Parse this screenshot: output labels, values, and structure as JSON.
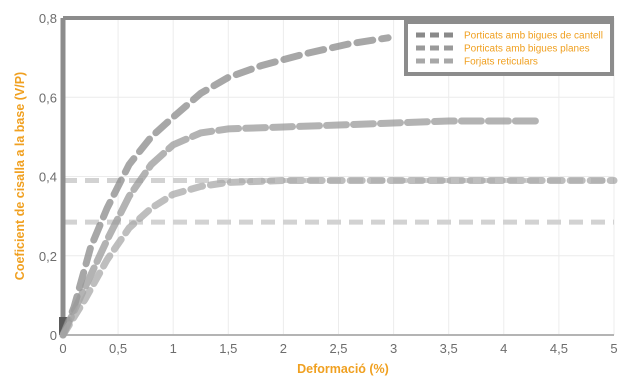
{
  "chart_data": {
    "type": "line",
    "title": "",
    "xlabel": "Deformació (%)",
    "ylabel": "Coeficient de cisalla a la base (V/P)",
    "xlim": [
      0,
      5
    ],
    "ylim": [
      0,
      0.8
    ],
    "x_ticks": [
      "0",
      "0,5",
      "1",
      "1,5",
      "2",
      "2,5",
      "3",
      "3,5",
      "4",
      "4,5",
      "5"
    ],
    "y_ticks": [
      "0",
      "0,2",
      "0,4",
      "0,6",
      "0,8"
    ],
    "legend_position": "top-right",
    "grid": true,
    "label_color": "#f0a020",
    "series": [
      {
        "name": "Porticats amb bigues de cantell",
        "color": "#8a8a8a",
        "points": [
          [
            0,
            0
          ],
          [
            0.1,
            0.07
          ],
          [
            0.25,
            0.22
          ],
          [
            0.4,
            0.32
          ],
          [
            0.6,
            0.43
          ],
          [
            0.8,
            0.5
          ],
          [
            1.0,
            0.55
          ],
          [
            1.25,
            0.61
          ],
          [
            1.5,
            0.65
          ],
          [
            1.8,
            0.68
          ],
          [
            2.2,
            0.71
          ],
          [
            2.6,
            0.735
          ],
          [
            2.95,
            0.75
          ]
        ]
      },
      {
        "name": "Porticats amb bigues planes",
        "color": "#9a9a9a",
        "points": [
          [
            0,
            0
          ],
          [
            0.2,
            0.12
          ],
          [
            0.4,
            0.24
          ],
          [
            0.6,
            0.35
          ],
          [
            0.8,
            0.43
          ],
          [
            1.0,
            0.48
          ],
          [
            1.25,
            0.51
          ],
          [
            1.5,
            0.52
          ],
          [
            2.0,
            0.525
          ],
          [
            2.5,
            0.53
          ],
          [
            3.0,
            0.535
          ],
          [
            3.5,
            0.54
          ],
          [
            4.0,
            0.54
          ],
          [
            4.3,
            0.54
          ]
        ]
      },
      {
        "name": "Forjats reticulars",
        "color": "#a8a8a8",
        "points": [
          [
            0,
            0
          ],
          [
            0.2,
            0.09
          ],
          [
            0.4,
            0.19
          ],
          [
            0.6,
            0.27
          ],
          [
            0.8,
            0.32
          ],
          [
            1.0,
            0.355
          ],
          [
            1.25,
            0.375
          ],
          [
            1.5,
            0.385
          ],
          [
            2.0,
            0.39
          ],
          [
            2.5,
            0.39
          ],
          [
            3.0,
            0.39
          ],
          [
            4.0,
            0.39
          ],
          [
            5.0,
            0.39
          ]
        ]
      }
    ],
    "reference_lines": [
      {
        "orientation": "horizontal",
        "y": 0.39
      },
      {
        "orientation": "horizontal",
        "y": 0.285
      }
    ]
  }
}
